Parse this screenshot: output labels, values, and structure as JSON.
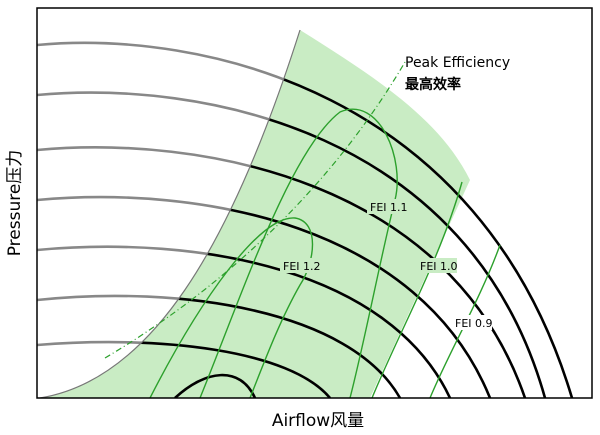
{
  "axes": {
    "x_label": "Airflow风量",
    "y_label": "Pressure压力"
  },
  "annotations": {
    "peak_efficiency": "Peak Efficiency",
    "peak_efficiency_cn": "最高效率"
  },
  "fei_labels": [
    "FEI 1.2",
    "FEI 1.1",
    "FEI 1.0",
    "FEI 0.9"
  ]
}
